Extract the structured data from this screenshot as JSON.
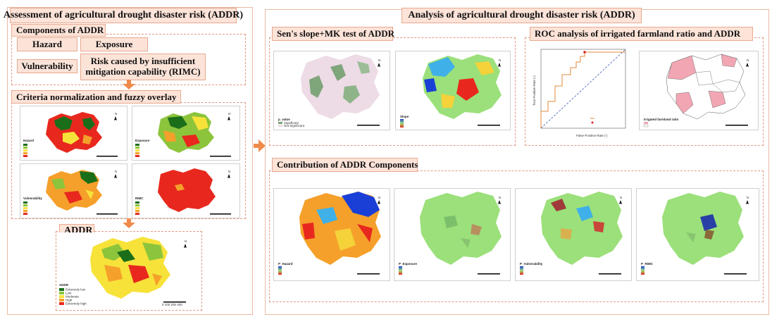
{
  "left": {
    "title": "Assessment of agricultural drought disaster risk (ADDR)",
    "components_title": "Components of ADDR",
    "components": {
      "hazard": "Hazard",
      "exposure": "Exposure",
      "vulnerability": "Vulnerability",
      "rimc": "Risk caused by insufficient mitigation capability (RIMC)"
    },
    "criteria_title": "Criteria normalization and fuzzy overlay",
    "addr_title": "ADDR"
  },
  "right": {
    "title": "Analysis of agricultural drought disaster risk (ADDR)",
    "sens_title": "Sen's slope+MK test of ADDR",
    "roc_title": "ROC analysis of irrigated farmland ratio and ADDR",
    "contrib_title": "Contribution of ADDR Components"
  },
  "colors": {
    "accent": "#f08a4b",
    "tab_bg": "#fde3d8",
    "tab_border": "#e8a98e",
    "dashed_border": "#e29a84",
    "risk_ramp": [
      "#1a6e1a",
      "#8cc43c",
      "#f7e23a",
      "#f5a02a",
      "#e8281e"
    ],
    "blue_ramp": [
      "#1a3fd6",
      "#3fb0e8",
      "#9be07a",
      "#f5d23a",
      "#e8281e"
    ]
  },
  "icons": [
    "north-arrow-icon",
    "arrow-down-icon",
    "arrow-right-icon",
    "scale-bar-icon"
  ]
}
